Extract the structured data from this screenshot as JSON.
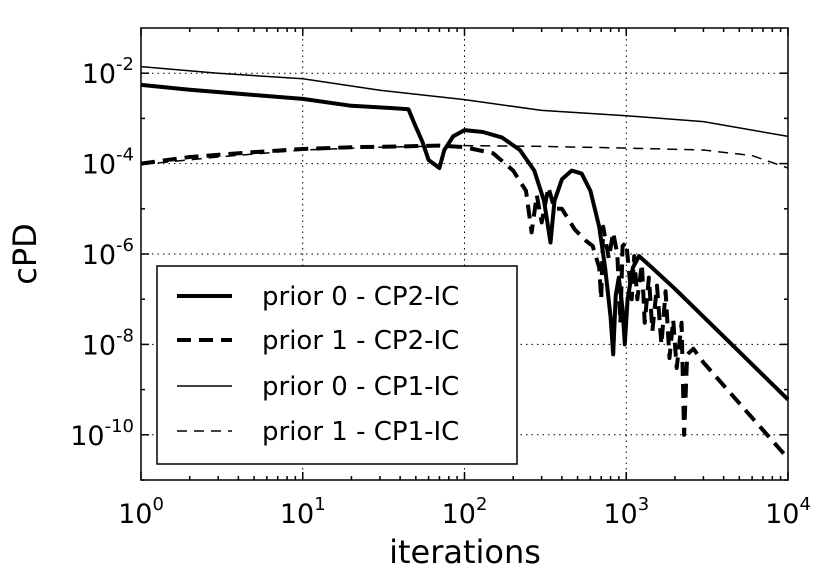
{
  "chart_data": {
    "type": "line",
    "title": "",
    "xlabel": "iterations",
    "ylabel": "cPD",
    "xscale": "log",
    "yscale": "log",
    "xlim": [
      1,
      10000
    ],
    "ylim": [
      1e-11,
      0.1
    ],
    "grid": true,
    "legend_position": "lower-left",
    "x_ticks": [
      {
        "base": "10",
        "exp": "0",
        "value": 1
      },
      {
        "base": "10",
        "exp": "1",
        "value": 10
      },
      {
        "base": "10",
        "exp": "2",
        "value": 100
      },
      {
        "base": "10",
        "exp": "3",
        "value": 1000
      },
      {
        "base": "10",
        "exp": "4",
        "value": 10000
      }
    ],
    "y_ticks": [
      {
        "base": "10",
        "exp": "-10",
        "value": 1e-10
      },
      {
        "base": "10",
        "exp": "-8",
        "value": 1e-08
      },
      {
        "base": "10",
        "exp": "-6",
        "value": 1e-06
      },
      {
        "base": "10",
        "exp": "-4",
        "value": 0.0001
      },
      {
        "base": "10",
        "exp": "-2",
        "value": 0.01
      }
    ],
    "series": [
      {
        "name": "prior 0 - CP2-IC",
        "style": "thick-solid",
        "points": [
          [
            1,
            0.0055
          ],
          [
            2,
            0.0043
          ],
          [
            5,
            0.0033
          ],
          [
            10,
            0.0027
          ],
          [
            20,
            0.0019
          ],
          [
            35,
            0.0017
          ],
          [
            45,
            0.0016
          ],
          [
            50,
            0.00065
          ],
          [
            55,
            0.0003
          ],
          [
            60,
            0.00012
          ],
          [
            70,
            8e-05
          ],
          [
            75,
            0.0002
          ],
          [
            85,
            0.0004
          ],
          [
            100,
            0.00055
          ],
          [
            130,
            0.0005
          ],
          [
            170,
            0.00038
          ],
          [
            220,
            0.0002
          ],
          [
            270,
            7e-05
          ],
          [
            310,
            1.5e-05
          ],
          [
            340,
            1.8e-06
          ],
          [
            360,
            1.5e-05
          ],
          [
            400,
            4.5e-05
          ],
          [
            460,
            7e-05
          ],
          [
            530,
            6e-05
          ],
          [
            600,
            2.5e-05
          ],
          [
            680,
            4e-06
          ],
          [
            740,
            5e-07
          ],
          [
            800,
            4e-08
          ],
          [
            830,
            6e-09
          ],
          [
            860,
            1.2e-07
          ],
          [
            900,
            3e-07
          ],
          [
            950,
            6e-08
          ],
          [
            980,
            1e-08
          ],
          [
            1020,
            1e-07
          ],
          [
            1100,
            5e-07
          ],
          [
            1200,
            9e-07
          ],
          [
            1400,
            5.5e-07
          ],
          [
            2000,
            1.7e-07
          ],
          [
            4000,
            1.5e-08
          ],
          [
            10000,
            6e-10
          ]
        ]
      },
      {
        "name": "prior 1 - CP2-IC",
        "style": "thick-dashed",
        "points": [
          [
            1,
            0.0001
          ],
          [
            2,
            0.00014
          ],
          [
            5,
            0.00018
          ],
          [
            10,
            0.00021
          ],
          [
            20,
            0.00023
          ],
          [
            40,
            0.00024
          ],
          [
            70,
            0.00025
          ],
          [
            100,
            0.00023
          ],
          [
            150,
            0.00017
          ],
          [
            200,
            7e-05
          ],
          [
            240,
            2.5e-05
          ],
          [
            260,
            3e-06
          ],
          [
            280,
            2e-05
          ],
          [
            300,
            5e-06
          ],
          [
            330,
            3e-05
          ],
          [
            360,
            1e-05
          ],
          [
            400,
            1e-05
          ],
          [
            480,
            3.5e-06
          ],
          [
            560,
            2e-06
          ],
          [
            620,
            1.5e-06
          ],
          [
            680,
            5e-07
          ],
          [
            700,
            1e-07
          ],
          [
            720,
            4e-06
          ],
          [
            780,
            8e-07
          ],
          [
            830,
            3e-06
          ],
          [
            880,
            1e-06
          ],
          [
            920,
            3e-08
          ],
          [
            950,
            1.5e-06
          ],
          [
            1000,
            1.8e-06
          ],
          [
            1080,
            1e-07
          ],
          [
            1120,
            9e-07
          ],
          [
            1170,
            1e-07
          ],
          [
            1250,
            6e-07
          ],
          [
            1300,
            3e-08
          ],
          [
            1380,
            3e-07
          ],
          [
            1450,
            2e-08
          ],
          [
            1550,
            2e-07
          ],
          [
            1650,
            1e-08
          ],
          [
            1750,
            1.5e-07
          ],
          [
            1850,
            5e-09
          ],
          [
            1950,
            3.5e-08
          ],
          [
            2050,
            3e-09
          ],
          [
            2200,
            3e-08
          ],
          [
            2280,
            1e-10
          ],
          [
            2380,
            6e-09
          ],
          [
            2600,
            8e-09
          ],
          [
            3000,
            4e-09
          ],
          [
            5000,
            5e-10
          ],
          [
            10000,
            3e-11
          ]
        ]
      },
      {
        "name": "prior 0 - CP1-IC",
        "style": "thin-solid",
        "points": [
          [
            1,
            0.014
          ],
          [
            3,
            0.01
          ],
          [
            10,
            0.0075
          ],
          [
            30,
            0.0042
          ],
          [
            100,
            0.0026
          ],
          [
            300,
            0.0015
          ],
          [
            1000,
            0.00115
          ],
          [
            3000,
            0.00085
          ],
          [
            10000,
            0.0004
          ]
        ]
      },
      {
        "name": "prior 1 - CP1-IC",
        "style": "thin-dashed",
        "points": [
          [
            1,
            9.5e-05
          ],
          [
            3,
            0.00014
          ],
          [
            10,
            0.0002
          ],
          [
            30,
            0.00023
          ],
          [
            100,
            0.00025
          ],
          [
            300,
            0.00024
          ],
          [
            1000,
            0.00022
          ],
          [
            3000,
            0.0002
          ],
          [
            6000,
            0.00015
          ],
          [
            10000,
            8e-05
          ]
        ]
      }
    ]
  }
}
